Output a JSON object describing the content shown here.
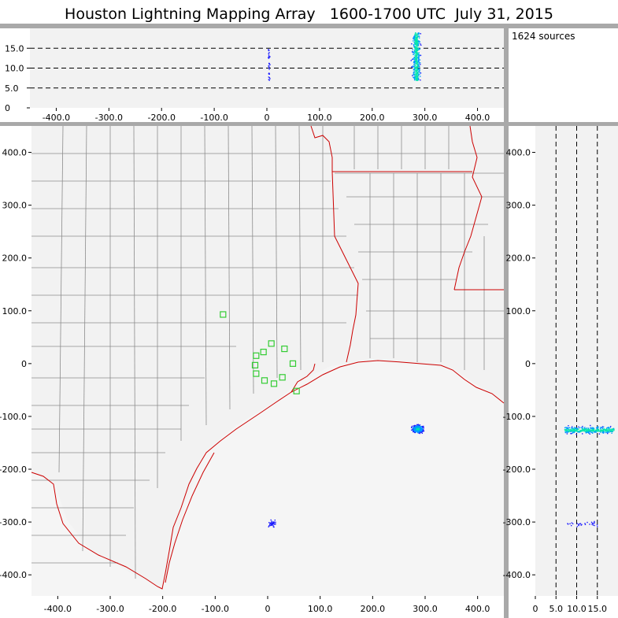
{
  "title": "Houston Lightning Mapping Array   1600-1700 UTC  July 31, 2015",
  "source_count_label": "1624 sources",
  "colors": {
    "panel_bg": "#f2f2f2",
    "frame": "#aaaaaa",
    "county_lines": "#8c8c8c",
    "state_coast_lines": "#cc0000",
    "station_markers": "#33cc33",
    "source_density_low": "#1a1aff",
    "source_density_mid": "#0099ff",
    "source_density_high": "#00e6aa"
  },
  "chart_data": [
    {
      "panel": "x-altitude",
      "type": "scatter",
      "xlim": [
        -450,
        450
      ],
      "ylim": [
        0,
        20
      ],
      "x_ticks": [
        "-400.0",
        "-300.0",
        "-200.0",
        "-100.0",
        "0",
        "100.0",
        "200.0",
        "300.0",
        "400.0"
      ],
      "y_ticks": [
        "0",
        "5.0",
        "10.0",
        "15.0"
      ],
      "y_ticks_values": [
        0,
        5,
        10,
        15
      ],
      "dashed_reference_lines_y": [
        5,
        10,
        15
      ],
      "clusters": [
        {
          "x_center": 283,
          "x_spread": 12,
          "y_min": 7,
          "y_max": 19,
          "density": "high"
        },
        {
          "x_center": 3,
          "x_spread": 3,
          "y_min": 7,
          "y_max": 15,
          "density": "low"
        }
      ]
    },
    {
      "panel": "plan-view-map",
      "type": "scatter",
      "xlim": [
        -450,
        450
      ],
      "ylim": [
        -440,
        450
      ],
      "x_ticks": [
        "-400.0",
        "-300.0",
        "-200.0",
        "-100.0",
        "0",
        "100.0",
        "200.0",
        "300.0",
        "400.0"
      ],
      "y_ticks": [
        "400.0",
        "300.0",
        "200.0",
        "100.0",
        "0",
        "-100.0",
        "-200.0",
        "-300.0",
        "-400.0"
      ],
      "y_ticks_values": [
        400,
        300,
        200,
        100,
        0,
        -100,
        -200,
        -300,
        -400
      ],
      "stations": [
        {
          "x": -85,
          "y": 93
        },
        {
          "x": -22,
          "y": 15
        },
        {
          "x": -8,
          "y": 22
        },
        {
          "x": 7,
          "y": 38
        },
        {
          "x": 32,
          "y": 28
        },
        {
          "x": 48,
          "y": 0
        },
        {
          "x": -24,
          "y": -3
        },
        {
          "x": -22,
          "y": -19
        },
        {
          "x": -6,
          "y": -32
        },
        {
          "x": 12,
          "y": -38
        },
        {
          "x": 28,
          "y": -26
        },
        {
          "x": 55,
          "y": -52
        }
      ],
      "clusters": [
        {
          "x_center": 285,
          "y_center": -123,
          "x_spread": 16,
          "y_spread": 11,
          "density": "high"
        },
        {
          "x_center": 8,
          "y_center": -303,
          "x_spread": 12,
          "y_spread": 10,
          "density": "low"
        }
      ]
    },
    {
      "panel": "altitude-y",
      "type": "scatter",
      "xlim": [
        0,
        20
      ],
      "ylim": [
        -440,
        450
      ],
      "x_ticks": [
        "0",
        "5.0",
        "10.0",
        "15.0"
      ],
      "x_ticks_values": [
        0,
        5,
        10,
        15
      ],
      "y_ticks": [
        "400.0",
        "300.0",
        "200.0",
        "100.0",
        "0",
        "-100.0",
        "-200.0",
        "-300.0",
        "-400.0"
      ],
      "y_ticks_values": [
        400,
        300,
        200,
        100,
        0,
        -100,
        -200,
        -300,
        -400
      ],
      "dashed_reference_lines_x": [
        5,
        10,
        15
      ],
      "clusters": [
        {
          "y_center": -125,
          "y_spread": 10,
          "x_min": 7,
          "x_max": 19,
          "density": "high"
        },
        {
          "y_center": -303,
          "y_spread": 8,
          "x_min": 7,
          "x_max": 15,
          "density": "low"
        }
      ]
    }
  ]
}
